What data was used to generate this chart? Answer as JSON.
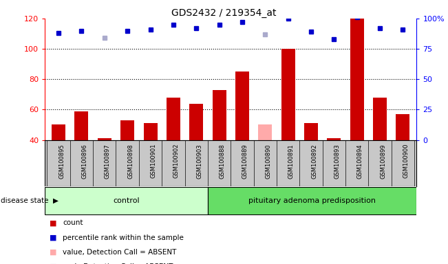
{
  "title": "GDS2432 / 219354_at",
  "samples": [
    "GSM100895",
    "GSM100896",
    "GSM100897",
    "GSM100898",
    "GSM100901",
    "GSM100902",
    "GSM100903",
    "GSM100888",
    "GSM100889",
    "GSM100890",
    "GSM100891",
    "GSM100892",
    "GSM100893",
    "GSM100894",
    "GSM100899",
    "GSM100900"
  ],
  "n_control": 7,
  "count_values": [
    50,
    59,
    41,
    53,
    51,
    68,
    64,
    73,
    85,
    50,
    100,
    51,
    41,
    120,
    68,
    57
  ],
  "count_absent": [
    false,
    false,
    false,
    false,
    false,
    false,
    false,
    false,
    false,
    true,
    false,
    false,
    false,
    false,
    false,
    false
  ],
  "percentile_values": [
    88,
    90,
    84,
    90,
    91,
    95,
    92,
    95,
    97,
    87,
    100,
    89,
    83,
    101,
    92,
    91
  ],
  "percentile_absent": [
    false,
    false,
    true,
    false,
    false,
    false,
    false,
    false,
    false,
    true,
    false,
    false,
    false,
    false,
    false,
    false
  ],
  "ylim_left": [
    40,
    120
  ],
  "ylim_right": [
    0,
    100
  ],
  "bar_color": "#cc0000",
  "bar_absent_color": "#ffaaaa",
  "dot_color": "#0000cc",
  "dot_absent_color": "#aaaacc",
  "bg_color": "#c8c8c8",
  "control_bg": "#ccffcc",
  "disease_bg": "#66dd66",
  "control_label": "control",
  "disease_label": "pituitary adenoma predisposition",
  "disease_state_label": "disease state",
  "legend_items": [
    "count",
    "percentile rank within the sample",
    "value, Detection Call = ABSENT",
    "rank, Detection Call = ABSENT"
  ],
  "legend_colors": [
    "#cc0000",
    "#0000cc",
    "#ffaaaa",
    "#aaaacc"
  ]
}
